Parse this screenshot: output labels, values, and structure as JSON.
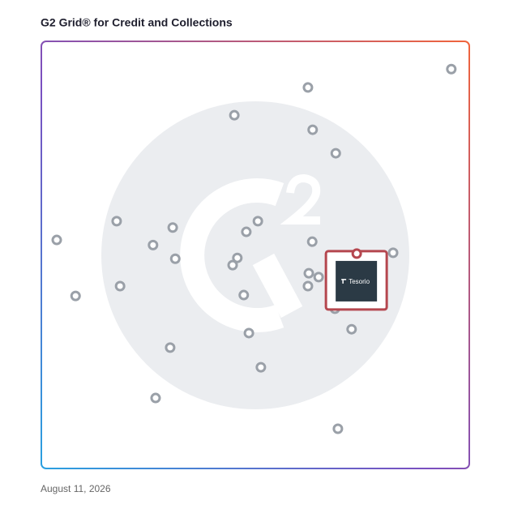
{
  "chart_data": {
    "type": "scatter",
    "title": "G2 Grid® for Credit and Collections",
    "date": "August 11, 2026",
    "xlim": [
      0,
      100
    ],
    "ylim": [
      0,
      100
    ],
    "x": [
      95.8,
      62.3,
      45.1,
      63.4,
      68.8,
      17.6,
      50.6,
      30.7,
      47.9,
      3.6,
      26.1,
      63.3,
      82.2,
      31.3,
      45.8,
      44.7,
      62.5,
      64.8,
      62.3,
      18.4,
      8.0,
      47.3,
      68.6,
      72.5,
      48.5,
      30.1,
      51.3,
      26.7,
      69.3
    ],
    "y": [
      93.5,
      89.2,
      82.7,
      79.3,
      73.8,
      57.9,
      57.9,
      56.4,
      55.4,
      53.5,
      52.3,
      53.1,
      50.5,
      49.1,
      49.3,
      47.6,
      45.7,
      44.8,
      42.7,
      42.7,
      40.4,
      40.6,
      37.4,
      32.6,
      31.7,
      28.3,
      23.7,
      16.5,
      9.3
    ],
    "color": "#9aa0a8",
    "highlight": {
      "name": "Tesorio",
      "x": 73.7,
      "y": 50.3,
      "color": "#b5474f"
    }
  }
}
